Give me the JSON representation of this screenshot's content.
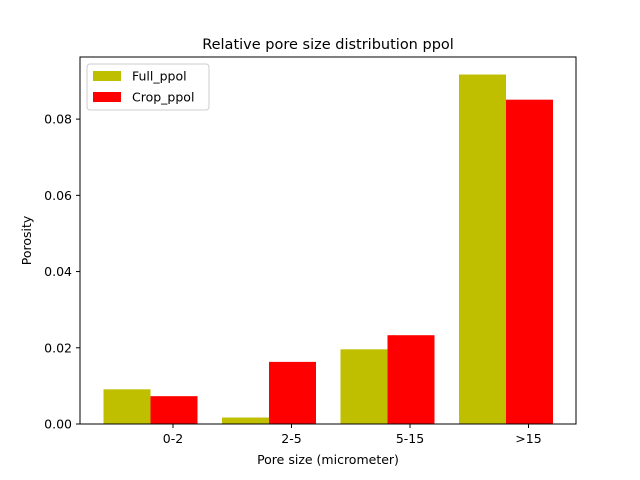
{
  "chart_data": {
    "type": "bar",
    "title": "Relative pore size distribution ppol",
    "xlabel": "Pore size (micrometer)",
    "ylabel": "Porosity",
    "categories": [
      "0-2",
      "2-5",
      "5-15",
      ">15"
    ],
    "ylim": [
      0,
      0.0963
    ],
    "yticks": [
      0.0,
      0.02,
      0.04,
      0.06,
      0.08
    ],
    "ytick_labels": [
      "0.00",
      "0.02",
      "0.04",
      "0.06",
      "0.08"
    ],
    "grid": false,
    "legend": "top-left",
    "series": [
      {
        "name": "Full_ppol",
        "color": "#bfbf00",
        "values": [
          0.0091,
          0.0017,
          0.0196,
          0.0917
        ]
      },
      {
        "name": "Crop_ppol",
        "color": "#ff0000",
        "values": [
          0.0073,
          0.0163,
          0.0233,
          0.0851
        ]
      }
    ]
  }
}
